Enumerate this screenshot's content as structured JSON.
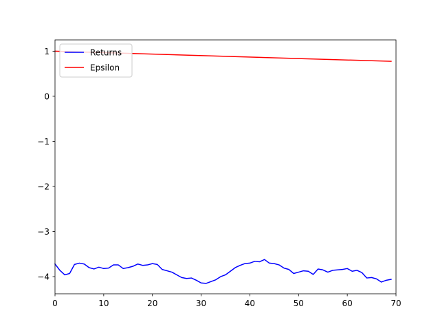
{
  "chart_data": {
    "type": "line",
    "title": "",
    "xlabel": "",
    "ylabel": "",
    "xlim": [
      0,
      70
    ],
    "ylim": [
      -4.38,
      1.25
    ],
    "xticks": [
      0,
      10,
      20,
      30,
      40,
      50,
      60,
      70
    ],
    "yticks": [
      1,
      0,
      -1,
      -2,
      -3,
      -4
    ],
    "xtick_labels": [
      "0",
      "10",
      "20",
      "30",
      "40",
      "50",
      "60",
      "70"
    ],
    "ytick_labels": [
      "1",
      "0",
      "−1",
      "−2",
      "−3",
      "−4"
    ],
    "grid": false,
    "legend_position": "top-left",
    "series": [
      {
        "name": "Returns",
        "color": "#0000ff",
        "x": [
          0,
          1,
          2,
          3,
          4,
          5,
          6,
          7,
          8,
          9,
          10,
          11,
          12,
          13,
          14,
          15,
          16,
          17,
          18,
          19,
          20,
          21,
          22,
          23,
          24,
          25,
          26,
          27,
          28,
          29,
          30,
          31,
          32,
          33,
          34,
          35,
          36,
          37,
          38,
          39,
          40,
          41,
          42,
          43,
          44,
          45,
          46,
          47,
          48,
          49,
          50,
          51,
          52,
          53,
          54,
          55,
          56,
          57,
          58,
          59,
          60,
          61,
          62,
          63,
          64,
          65,
          66,
          67,
          68,
          69
        ],
        "values": [
          -3.72,
          -3.86,
          -3.96,
          -3.93,
          -3.73,
          -3.7,
          -3.72,
          -3.8,
          -3.83,
          -3.79,
          -3.82,
          -3.81,
          -3.74,
          -3.74,
          -3.82,
          -3.8,
          -3.77,
          -3.72,
          -3.75,
          -3.74,
          -3.71,
          -3.73,
          -3.84,
          -3.87,
          -3.9,
          -3.96,
          -4.02,
          -4.04,
          -4.03,
          -4.08,
          -4.14,
          -4.15,
          -4.11,
          -4.07,
          -4.0,
          -3.96,
          -3.88,
          -3.8,
          -3.75,
          -3.71,
          -3.7,
          -3.66,
          -3.67,
          -3.62,
          -3.7,
          -3.71,
          -3.74,
          -3.81,
          -3.84,
          -3.93,
          -3.9,
          -3.87,
          -3.88,
          -3.95,
          -3.83,
          -3.85,
          -3.9,
          -3.86,
          -3.85,
          -3.84,
          -3.82,
          -3.88,
          -3.86,
          -3.91,
          -4.03,
          -4.02,
          -4.05,
          -4.12,
          -4.08,
          -4.06
        ]
      },
      {
        "name": "Epsilon",
        "color": "#ff0000",
        "x": [
          0,
          69
        ],
        "values": [
          1.0,
          0.775
        ]
      }
    ]
  }
}
